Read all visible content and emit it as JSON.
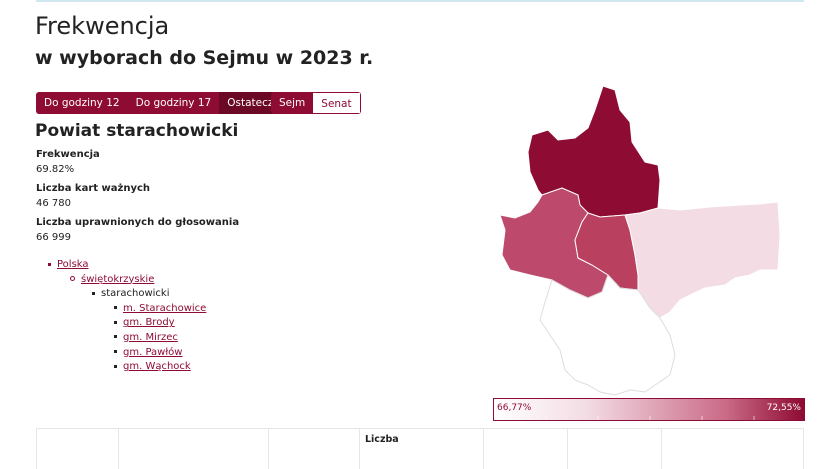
{
  "page": {
    "title": "Frekwencja",
    "subtitle": "w wyborach do Sejmu w 2023 r."
  },
  "time_tabs": [
    {
      "label": "Do godziny 12",
      "active": false
    },
    {
      "label": "Do godziny 17",
      "active": false
    },
    {
      "label": "Ostateczna",
      "active": true
    }
  ],
  "chamber_tabs": [
    {
      "label": "Sejm",
      "active": true
    },
    {
      "label": "Senat",
      "active": false
    }
  ],
  "region": {
    "name": "Powiat starachowicki",
    "stats": [
      {
        "label": "Frekwencja",
        "value": "69.82%"
      },
      {
        "label": "Liczba kart ważnych",
        "value": "46 780"
      },
      {
        "label": "Liczba uprawnionych do głosowania",
        "value": "66 999"
      }
    ]
  },
  "breadcrumb": {
    "country": "Polska",
    "voivodeship": "świętokrzyskie",
    "county": "starachowicki",
    "municipalities": [
      "m. Starachowice",
      "gm. Brody",
      "gm. Mirzec",
      "gm. Pawłów",
      "gm. Wąchock"
    ]
  },
  "legend": {
    "min": "66,77%",
    "max": "72,55%",
    "colors": {
      "low": "#ffffff",
      "high": "#8e0b33"
    }
  },
  "table": {
    "header_partial": "Liczba"
  },
  "colors": {
    "accent": "#8e0b33",
    "accent_dark": "#6b0825",
    "map_shades": [
      "#8e0b33",
      "#bd4a6c",
      "#b9405f",
      "#f3dce4",
      "#ffffff"
    ]
  }
}
